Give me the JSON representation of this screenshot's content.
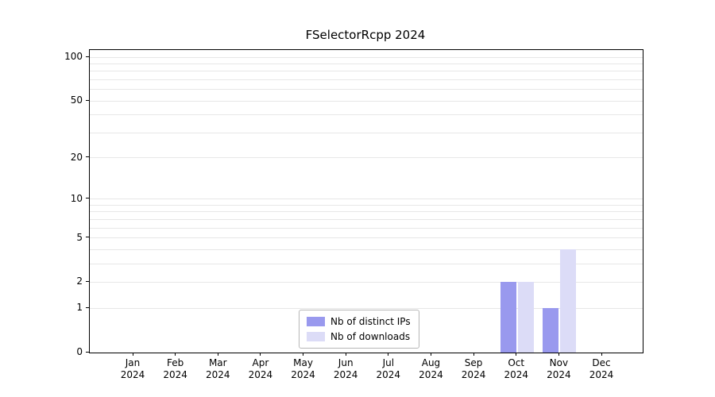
{
  "chart_data": {
    "type": "bar",
    "title": "FSelectorRcpp 2024",
    "categories": [
      {
        "month": "Jan",
        "year": "2024"
      },
      {
        "month": "Feb",
        "year": "2024"
      },
      {
        "month": "Mar",
        "year": "2024"
      },
      {
        "month": "Apr",
        "year": "2024"
      },
      {
        "month": "May",
        "year": "2024"
      },
      {
        "month": "Jun",
        "year": "2024"
      },
      {
        "month": "Jul",
        "year": "2024"
      },
      {
        "month": "Aug",
        "year": "2024"
      },
      {
        "month": "Sep",
        "year": "2024"
      },
      {
        "month": "Oct",
        "year": "2024"
      },
      {
        "month": "Nov",
        "year": "2024"
      },
      {
        "month": "Dec",
        "year": "2024"
      }
    ],
    "series": [
      {
        "name": "Nb of distinct IPs",
        "color": "#9999ee",
        "values": [
          0,
          0,
          0,
          0,
          0,
          0,
          0,
          0,
          0,
          2,
          1,
          0
        ]
      },
      {
        "name": "Nb of downloads",
        "color": "#dcdcf7",
        "values": [
          0,
          0,
          0,
          0,
          0,
          0,
          0,
          0,
          0,
          2,
          4,
          0
        ]
      }
    ],
    "y_scale": "log1p",
    "ylim": [
      0,
      100
    ],
    "y_ticks": [
      0,
      1,
      2,
      5,
      10,
      20,
      50,
      100
    ],
    "y_minor_gridlines": [
      1,
      2,
      3,
      4,
      5,
      6,
      7,
      8,
      9,
      10,
      20,
      30,
      40,
      50,
      60,
      70,
      80,
      90,
      100
    ],
    "xlabel": "",
    "ylabel": "",
    "grid": "horizontal",
    "legend_position": "lower center"
  }
}
